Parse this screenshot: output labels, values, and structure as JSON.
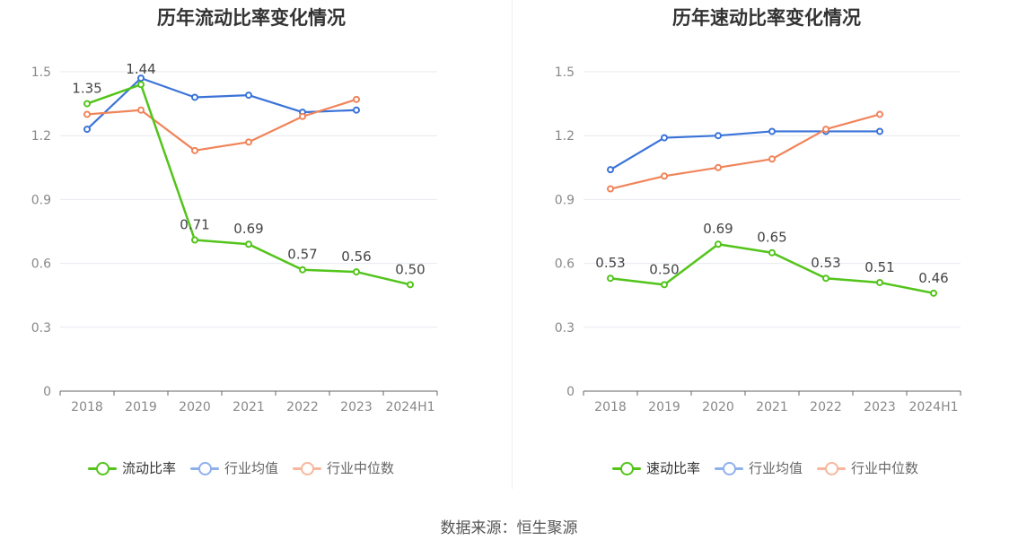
{
  "source": "数据来源：恒生聚源",
  "chart_data": [
    {
      "type": "line",
      "title": "历年流动比率变化情况",
      "categories": [
        "2018",
        "2019",
        "2020",
        "2021",
        "2022",
        "2023",
        "2024H1"
      ],
      "yticks": [
        "0",
        "0.3",
        "0.6",
        "0.9",
        "1.2",
        "1.5"
      ],
      "ylim": [
        0,
        1.5
      ],
      "grid": true,
      "legend_position": "bottom",
      "series": [
        {
          "name": "流动比率",
          "color": "#52c41a",
          "values": [
            1.35,
            1.44,
            0.71,
            0.69,
            0.57,
            0.56,
            0.5
          ],
          "labels": [
            "1.35",
            "1.44",
            "0.71",
            "0.69",
            "0.57",
            "0.56",
            "0.50"
          ]
        },
        {
          "name": "行业均值",
          "color": "#3a73d8",
          "values": [
            1.23,
            1.47,
            1.38,
            1.39,
            1.31,
            1.32,
            null
          ]
        },
        {
          "name": "行业中位数",
          "color": "#f0845a",
          "values": [
            1.3,
            1.32,
            1.13,
            1.17,
            1.29,
            1.37,
            null
          ]
        }
      ]
    },
    {
      "type": "line",
      "title": "历年速动比率变化情况",
      "categories": [
        "2018",
        "2019",
        "2020",
        "2021",
        "2022",
        "2023",
        "2024H1"
      ],
      "yticks": [
        "0",
        "0.3",
        "0.6",
        "0.9",
        "1.2",
        "1.5"
      ],
      "ylim": [
        0,
        1.5
      ],
      "grid": true,
      "legend_position": "bottom",
      "series": [
        {
          "name": "速动比率",
          "color": "#52c41a",
          "values": [
            0.53,
            0.5,
            0.69,
            0.65,
            0.53,
            0.51,
            0.46
          ],
          "labels": [
            "0.53",
            "0.50",
            "0.69",
            "0.65",
            "0.53",
            "0.51",
            "0.46"
          ]
        },
        {
          "name": "行业均值",
          "color": "#3a73d8",
          "values": [
            1.04,
            1.19,
            1.2,
            1.22,
            1.22,
            1.22,
            null
          ]
        },
        {
          "name": "行业中位数",
          "color": "#f0845a",
          "values": [
            0.95,
            1.01,
            1.05,
            1.09,
            1.23,
            1.3,
            null
          ]
        }
      ]
    }
  ]
}
